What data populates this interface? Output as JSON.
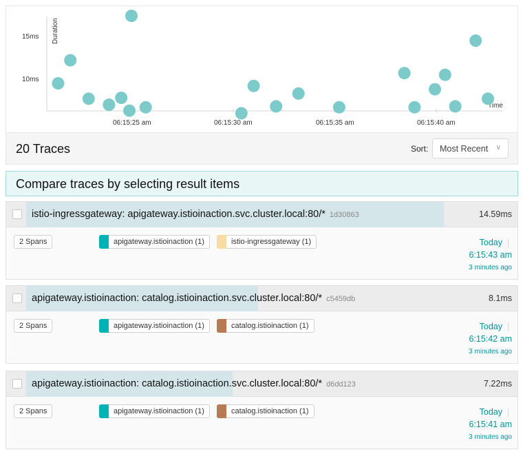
{
  "scatter": {
    "y_label": "Duration",
    "x_label": "Time",
    "y_ticks": [
      "15ms",
      "10ms"
    ],
    "x_ticks": [
      "06:15:25 am",
      "06:15:30 am",
      "06:15:35 am",
      "06:15:40 am"
    ],
    "dot_color": "#7ccaca"
  },
  "chart_data": {
    "type": "scatter",
    "xlabel": "Time",
    "ylabel": "Duration",
    "x_unit": "seconds after 06:15:25 am",
    "y_unit": "ms",
    "x": [
      -3.6,
      -3.0,
      -2.1,
      -1.1,
      -0.5,
      -0.1,
      0.7,
      5.4,
      6.0,
      7.1,
      8.2,
      10.2,
      13.4,
      13.9,
      14.9,
      15.4,
      15.9,
      16.9
    ],
    "y": [
      9.6,
      12.3,
      7.8,
      7.1,
      7.9,
      6.4,
      6.8,
      6.1,
      9.3,
      6.9,
      8.4,
      6.8,
      10.8,
      6.8,
      8.9,
      10.6,
      6.9,
      14.6
    ],
    "extra_points": [
      {
        "x": 0.0,
        "y": 17.5
      },
      {
        "x": 17.5,
        "y": 7.8
      }
    ]
  },
  "summary": {
    "count_label": "20 Traces",
    "sort_label": "Sort:",
    "sort_value": "Most Recent"
  },
  "compare_banner": "Compare traces by selecting result items",
  "traces": [
    {
      "title": "istio-ingressgateway: apigateway.istioinaction.svc.cluster.local:80/*",
      "trace_id": "1d30863",
      "duration": "14.59ms",
      "duration_fraction": 1.0,
      "spans": "2 Spans",
      "services": [
        {
          "name": "apigateway.istioinaction (1)",
          "color": "#00b3b3"
        },
        {
          "name": "istio-ingressgateway (1)",
          "color": "#f7dca4"
        }
      ],
      "day": "Today",
      "time": "6:15:43 am",
      "ago": "3 minutes ago"
    },
    {
      "title": "apigateway.istioinaction: catalog.istioinaction.svc.cluster.local:80/*",
      "trace_id": "c5459db",
      "duration": "8.1ms",
      "duration_fraction": 0.555,
      "spans": "2 Spans",
      "services": [
        {
          "name": "apigateway.istioinaction (1)",
          "color": "#00b3b3"
        },
        {
          "name": "catalog.istioinaction (1)",
          "color": "#b87a55"
        }
      ],
      "day": "Today",
      "time": "6:15:42 am",
      "ago": "3 minutes ago"
    },
    {
      "title": "apigateway.istioinaction: catalog.istioinaction.svc.cluster.local:80/*",
      "trace_id": "d6dd123",
      "duration": "7.22ms",
      "duration_fraction": 0.495,
      "spans": "2 Spans",
      "services": [
        {
          "name": "apigateway.istioinaction (1)",
          "color": "#00b3b3"
        },
        {
          "name": "catalog.istioinaction (1)",
          "color": "#b87a55"
        }
      ],
      "day": "Today",
      "time": "6:15:41 am",
      "ago": "3 minutes ago"
    }
  ]
}
